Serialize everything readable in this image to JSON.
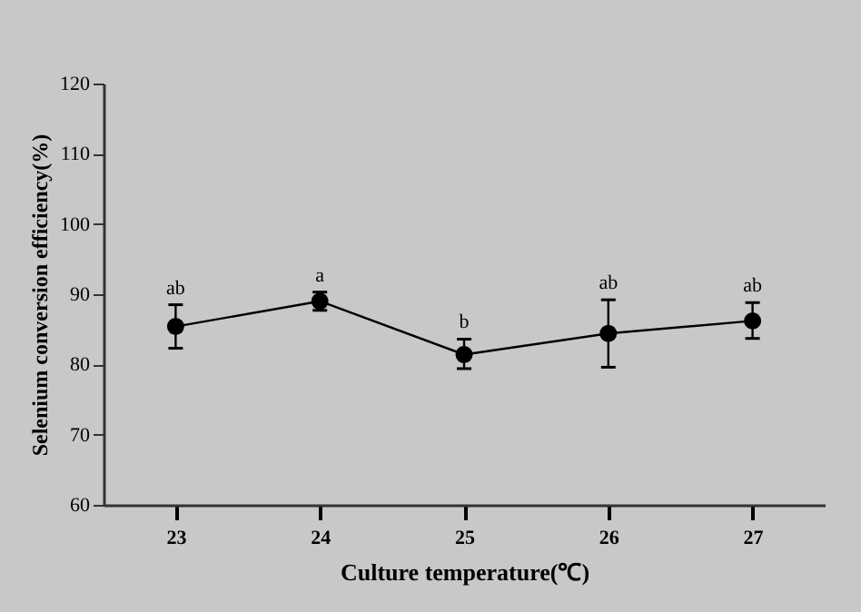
{
  "chart_data": {
    "type": "line",
    "xlabel": "Culture temperature(℃)",
    "ylabel": "Selenium conversion efficiency(%)",
    "x": [
      23,
      24,
      25,
      26,
      27
    ],
    "xlim": [
      22.5,
      27.5
    ],
    "xticks": [
      23,
      24,
      25,
      26,
      27
    ],
    "ylim": [
      60,
      120
    ],
    "yticks": [
      60,
      70,
      80,
      90,
      100,
      110,
      120
    ],
    "series": [
      {
        "color": "#000000",
        "values": [
          85.4,
          89.0,
          81.4,
          84.4,
          86.2
        ],
        "errors": [
          [
            82.3,
            88.5
          ],
          [
            87.7,
            90.3
          ],
          [
            79.4,
            83.6
          ],
          [
            79.6,
            89.2
          ],
          [
            83.7,
            88.8
          ]
        ]
      }
    ],
    "marker": "circle",
    "line_style": "solid",
    "grid": false,
    "annotations": [
      {
        "text": "ab",
        "x": 23,
        "y": 85.4
      },
      {
        "text": "a",
        "x": 24,
        "y": 89.0
      },
      {
        "text": "b",
        "x": 25,
        "y": 81.4
      },
      {
        "text": "ab",
        "x": 26,
        "y": 84.4
      },
      {
        "text": "ab",
        "x": 27,
        "y": 86.2
      }
    ]
  }
}
